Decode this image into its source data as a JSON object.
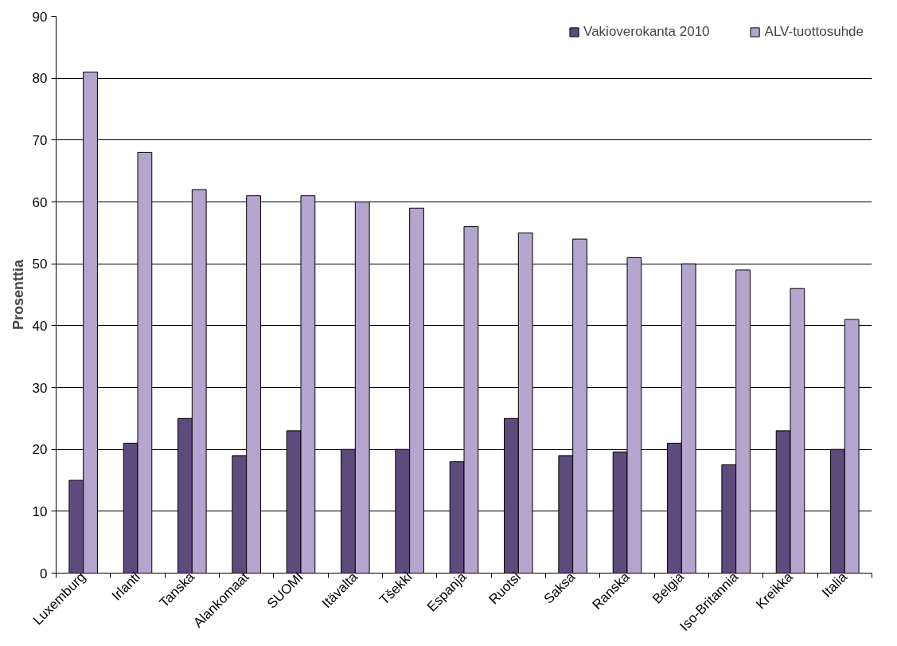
{
  "chart_data": {
    "type": "bar",
    "ylabel": "Prosenttia",
    "categories": [
      "Luxemburg",
      "Irlanti",
      "Tanska",
      "Alankomaat",
      "SUOMI",
      "Itävalta",
      "Tšekki",
      "Espanja",
      "Ruotsi",
      "Saksa",
      "Ranska",
      "Belgia",
      "Iso-Britannia",
      "Kreikka",
      "Italia"
    ],
    "series": [
      {
        "name": "Vakioverokanta 2010",
        "color": "#5e4b7e",
        "values": [
          15,
          21,
          25,
          19,
          23,
          20,
          20,
          18,
          25,
          19,
          19.6,
          21,
          17.5,
          23,
          20
        ]
      },
      {
        "name": "ALV-tuottosuhde",
        "color": "#b4a5cf",
        "values": [
          81,
          68,
          62,
          61,
          61,
          60,
          59,
          56,
          55,
          54,
          51,
          50,
          49,
          46,
          41
        ]
      }
    ],
    "ylim": [
      0,
      90
    ],
    "yticks": [
      0,
      10,
      20,
      30,
      40,
      50,
      60,
      70,
      80,
      90
    ],
    "grid": "y",
    "legend": "top right"
  }
}
